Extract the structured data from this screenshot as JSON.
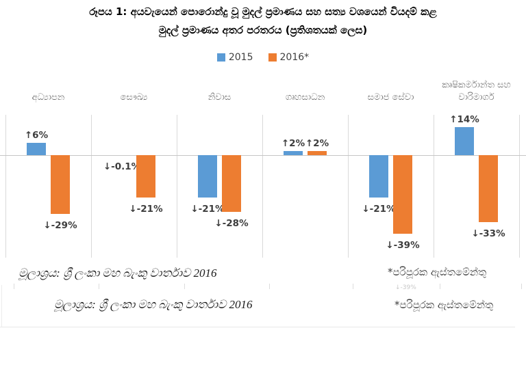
{
  "title": {
    "line1": "රූපය 1: අයවැයෙන් පොරොන්දු වූ මුදල් ප්‍රමාණය සහ සත්‍ය වශයෙන් වියදම් කළ",
    "line2": "මුදල් ප්‍රමාණය අතර පරතරය (ප්‍රතිශතයක් ලෙස)"
  },
  "chart_data": {
    "type": "bar",
    "title": "රූපය 1: අයවැයෙන් පොරොන්දු වූ මුදල් ප්‍රමාණය සහ සත්‍ය වශයෙන් වියදම් කළ මුදල් ප්‍රමාණය අතර පරතරය (ප්‍රතිශතයක් ලෙස)",
    "categories": [
      "අධ්‍යාපන",
      "සෞඛ්‍ය",
      "නිවාස",
      "ගෘහසාධන",
      "සමාජ සේවා",
      "කෘෂිකර්මාන්ත සහ වාරිමාර්ග"
    ],
    "series": [
      {
        "name": "2015",
        "color": "#5B9BD5",
        "values": [
          6,
          -0.1,
          -21,
          2,
          -21,
          14
        ],
        "labels": [
          "↑6%",
          "↓-0.1%",
          "↓-21%",
          "↑2%",
          "↓-21%",
          "↑14%"
        ]
      },
      {
        "name": "2016*",
        "color": "#ED7D31",
        "values": [
          -29,
          -21,
          -28,
          2,
          -39,
          -33
        ],
        "labels": [
          "↓-29%",
          "↓-21%",
          "↓-28%",
          "↑2%",
          "↓-39%",
          "↓-33%"
        ]
      }
    ],
    "ylabel": "",
    "xlabel": "",
    "ylim": [
      -50,
      20
    ],
    "grid": "vertical-category-separators",
    "legend_position": "top-center",
    "value_unit": "%"
  },
  "footnotes": {
    "row1": {
      "source": "මූලාශ්‍රය: ශ්‍රී ලංකා මහ බැංකු වාර්තාව 2016",
      "note": "*පරිපූරක ඇස්තමේන්තු"
    },
    "row2": {
      "source": "මූලාශ්‍රය: ශ්‍රී ලංකා මහ බැංකු වාර්තාව 2016",
      "note": "*පරිපූරක ඇස්තමේන්තු"
    },
    "artifact": "↓-39%"
  }
}
